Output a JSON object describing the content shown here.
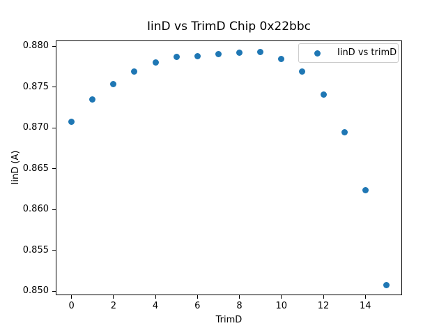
{
  "chart_data": {
    "type": "scatter",
    "title": "IinD vs TrimD Chip 0x22bbc",
    "xlabel": "TrimD",
    "ylabel": "IinD (A)",
    "series": [
      {
        "name": "IinD vs trimD",
        "x": [
          0,
          1,
          2,
          3,
          4,
          5,
          6,
          7,
          8,
          9,
          10,
          11,
          12,
          13,
          14,
          15
        ],
        "y": [
          0.8707,
          0.8735,
          0.8754,
          0.8769,
          0.878,
          0.8787,
          0.8788,
          0.879,
          0.8792,
          0.8793,
          0.8784,
          0.8769,
          0.8741,
          0.8695,
          0.8624,
          0.8507
        ],
        "marker_color": "#1f77b4"
      }
    ],
    "legend": {
      "entries": [
        "IinD vs trimD"
      ],
      "position": "upper right"
    },
    "xlim": [
      -0.75,
      15.75
    ],
    "ylim": [
      0.8495,
      0.8807
    ],
    "xticks": [
      0,
      2,
      4,
      6,
      8,
      10,
      12,
      14
    ],
    "xtick_labels": [
      "0",
      "2",
      "4",
      "6",
      "8",
      "10",
      "12",
      "14"
    ],
    "yticks": [
      0.85,
      0.855,
      0.86,
      0.865,
      0.87,
      0.875,
      0.88
    ],
    "ytick_labels": [
      "0.850",
      "0.855",
      "0.860",
      "0.865",
      "0.870",
      "0.875",
      "0.880"
    ],
    "grid": false
  }
}
